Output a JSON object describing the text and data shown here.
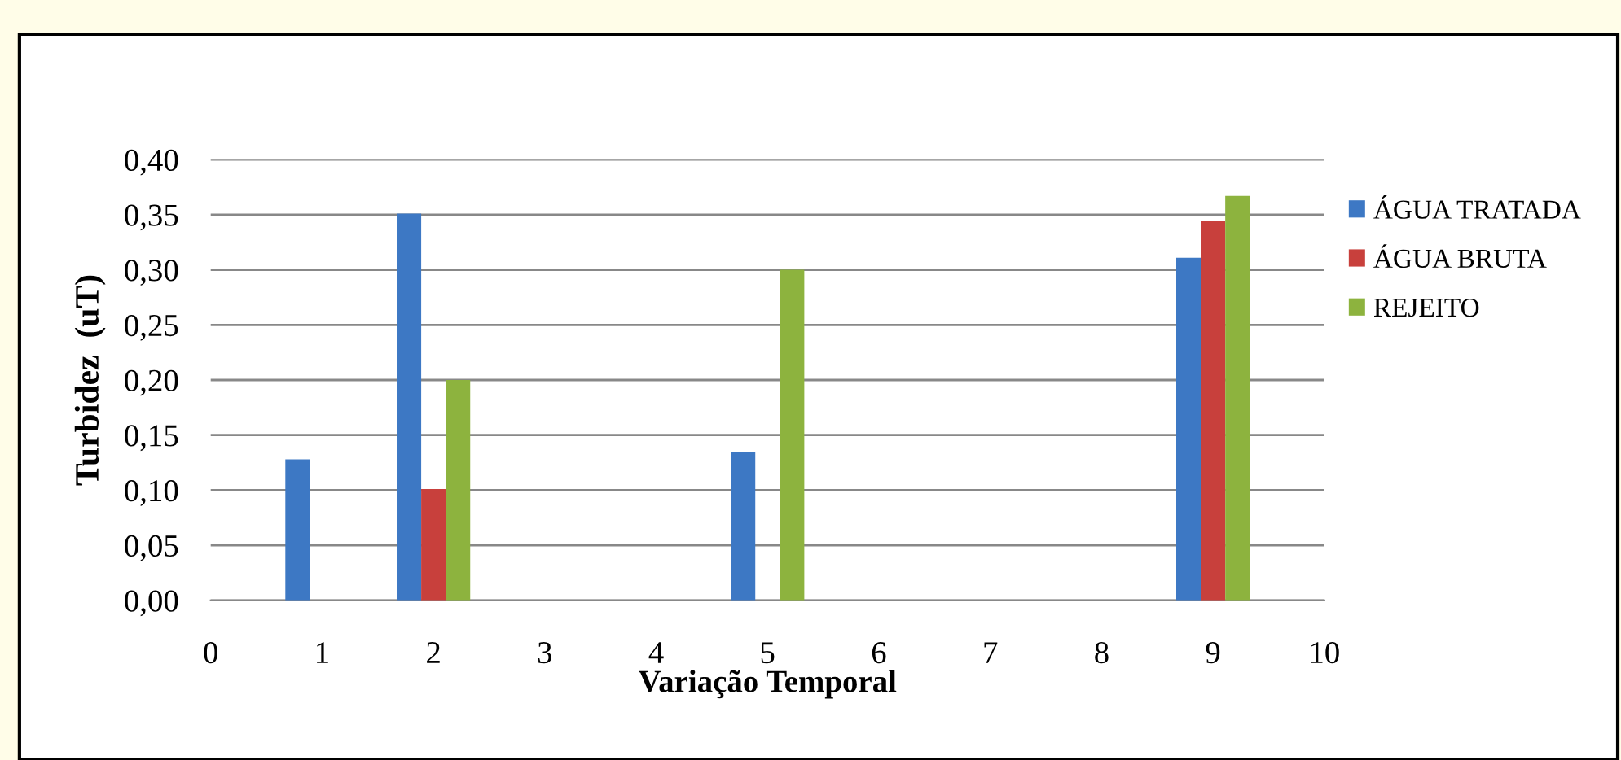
{
  "chart_data": {
    "type": "bar",
    "xlabel": "Variação Temporal",
    "ylabel": "Turbidez  (uT)",
    "x": [
      1,
      2,
      5,
      9
    ],
    "series": [
      {
        "name": "ÁGUA TRATADA",
        "color": "#3d78c4",
        "values": [
          0.128,
          0.351,
          0.135,
          0.311
        ]
      },
      {
        "name": "ÁGUA BRUTA",
        "color": "#c8403c",
        "values": [
          null,
          0.101,
          null,
          0.344
        ]
      },
      {
        "name": "REJEITO",
        "color": "#8db33e",
        "values": [
          null,
          0.2,
          0.3,
          0.367
        ]
      }
    ],
    "xlim": [
      0,
      10
    ],
    "xticks": [
      0,
      1,
      2,
      3,
      4,
      5,
      6,
      7,
      8,
      9,
      10
    ],
    "ylim": [
      0,
      0.4
    ],
    "yticks": [
      {
        "value": 0,
        "label": "0,00"
      },
      {
        "value": 0.05,
        "label": "0,05"
      },
      {
        "value": 0.1,
        "label": "0,10"
      },
      {
        "value": 0.15,
        "label": "0,15"
      },
      {
        "value": 0.2,
        "label": "0,20"
      },
      {
        "value": 0.25,
        "label": "0,25"
      },
      {
        "value": 0.3,
        "label": "0,30"
      },
      {
        "value": 0.35,
        "label": "0,35"
      },
      {
        "value": 0.4,
        "label": "0,40"
      }
    ],
    "grid": "y",
    "legend": "right"
  }
}
